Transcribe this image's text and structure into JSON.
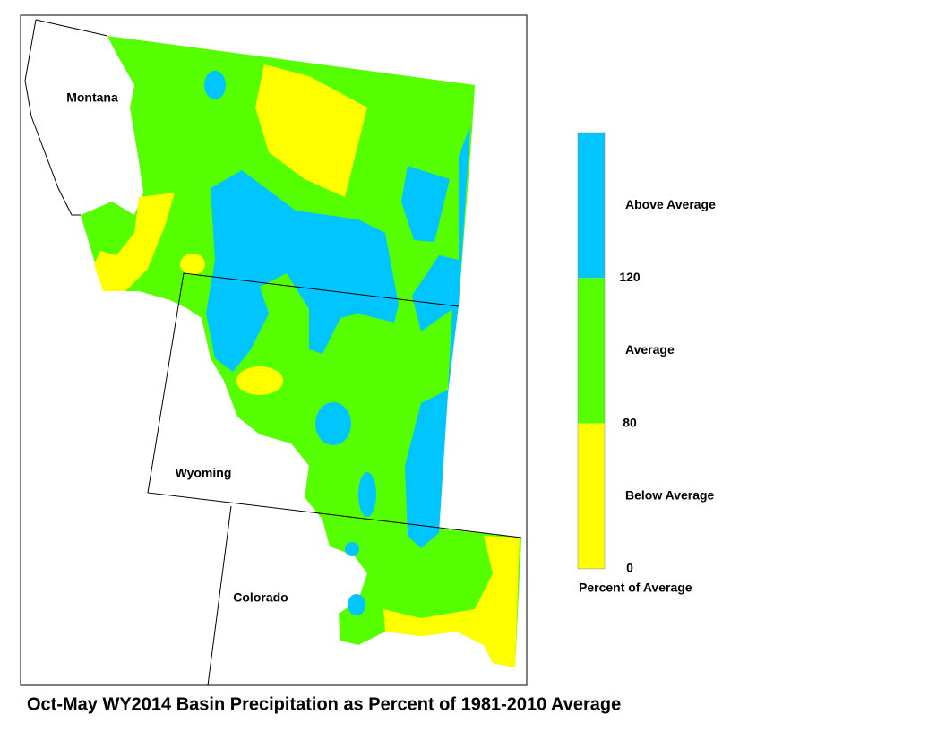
{
  "title": "Oct-May WY2014 Basin Precipitation as Percent of 1981-2010 Average",
  "states": [
    {
      "label": "Montana"
    },
    {
      "label": "Wyoming"
    },
    {
      "label": "Colorado"
    }
  ],
  "legend": {
    "classes": [
      {
        "label": "Above Average",
        "color": "#00c5ff"
      },
      {
        "label": "Average",
        "color": "#55ff00"
      },
      {
        "label": "Below Average",
        "color": "#ffff00"
      }
    ],
    "ticks": [
      120,
      80,
      0
    ],
    "caption": "Percent of Average"
  }
}
